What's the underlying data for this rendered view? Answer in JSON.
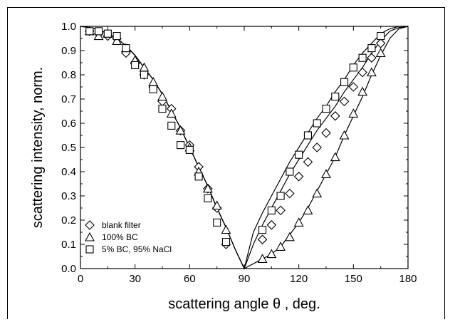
{
  "chart_data": {
    "type": "scatter",
    "xlabel": "scattering angle θ , deg.",
    "ylabel": "scattering intensity, norm.",
    "xlim": [
      0,
      180
    ],
    "ylim": [
      0,
      1.0
    ],
    "xticks": [
      "0",
      "30",
      "60",
      "90",
      "120",
      "150",
      "180"
    ],
    "yticks": [
      "0.0",
      "0.1",
      "0.2",
      "0.3",
      "0.4",
      "0.5",
      "0.6",
      "0.7",
      "0.8",
      "0.9",
      "1.0"
    ],
    "legend_position": "bottom-left",
    "series": [
      {
        "name": "blank filter",
        "marker": "diamond",
        "x": [
          5,
          10,
          15,
          20,
          25,
          30,
          35,
          40,
          45,
          50,
          55,
          60,
          65,
          70,
          75,
          80,
          100,
          105,
          110,
          115,
          120,
          125,
          130,
          135,
          140,
          145,
          150,
          155,
          160,
          165
        ],
        "y": [
          0.98,
          0.97,
          0.96,
          0.95,
          0.89,
          0.85,
          0.8,
          0.75,
          0.69,
          0.66,
          0.57,
          0.51,
          0.42,
          0.33,
          0.25,
          0.1,
          0.12,
          0.18,
          0.24,
          0.31,
          0.38,
          0.44,
          0.5,
          0.56,
          0.63,
          0.69,
          0.75,
          0.81,
          0.87,
          0.93
        ]
      },
      {
        "name": "100% BC",
        "marker": "triangle",
        "x": [
          5,
          10,
          15,
          20,
          25,
          30,
          35,
          40,
          45,
          50,
          55,
          60,
          65,
          70,
          75,
          80,
          100,
          105,
          110,
          115,
          120,
          125,
          130,
          135,
          140,
          145,
          150,
          155,
          160,
          165
        ],
        "y": [
          0.98,
          0.96,
          0.97,
          0.94,
          0.91,
          0.86,
          0.83,
          0.77,
          0.71,
          0.64,
          0.57,
          0.5,
          0.4,
          0.33,
          0.26,
          0.16,
          0.04,
          0.06,
          0.09,
          0.13,
          0.19,
          0.24,
          0.31,
          0.39,
          0.46,
          0.55,
          0.64,
          0.73,
          0.81,
          0.89
        ]
      },
      {
        "name": "5% BC, 95% NaCl",
        "marker": "square",
        "x": [
          5,
          10,
          15,
          20,
          25,
          30,
          35,
          40,
          45,
          50,
          55,
          60,
          65,
          70,
          75,
          80,
          100,
          105,
          110,
          115,
          120,
          125,
          130,
          135,
          140,
          145,
          150,
          155,
          160,
          165
        ],
        "y": [
          0.98,
          0.98,
          0.97,
          0.96,
          0.91,
          0.84,
          0.8,
          0.74,
          0.66,
          0.59,
          0.51,
          0.49,
          0.38,
          0.29,
          0.19,
          0.11,
          0.16,
          0.24,
          0.3,
          0.4,
          0.47,
          0.55,
          0.6,
          0.66,
          0.71,
          0.77,
          0.83,
          0.87,
          0.91,
          0.96
        ]
      }
    ],
    "fit_curves": [
      {
        "x": [
          0,
          5,
          10,
          15,
          20,
          25,
          30,
          35,
          40,
          45,
          50,
          55,
          60,
          65,
          70,
          75,
          80,
          85,
          90,
          95,
          100,
          105,
          110,
          115,
          120,
          125,
          130,
          135,
          140,
          145,
          150,
          155,
          160,
          165,
          170,
          175,
          180
        ],
        "y": [
          1.0,
          0.995,
          0.985,
          0.97,
          0.95,
          0.92,
          0.88,
          0.83,
          0.78,
          0.72,
          0.65,
          0.58,
          0.5,
          0.42,
          0.34,
          0.25,
          0.17,
          0.08,
          0.0,
          0.1,
          0.18,
          0.25,
          0.32,
          0.39,
          0.45,
          0.51,
          0.57,
          0.62,
          0.67,
          0.73,
          0.78,
          0.83,
          0.89,
          0.94,
          0.98,
          0.995,
          1.0
        ]
      },
      {
        "x": [
          0,
          5,
          10,
          15,
          20,
          25,
          30,
          35,
          40,
          45,
          50,
          55,
          60,
          65,
          70,
          75,
          80,
          85,
          90,
          95,
          100,
          105,
          110,
          115,
          120,
          125,
          130,
          135,
          140,
          145,
          150,
          155,
          160,
          165,
          170,
          175,
          180
        ],
        "y": [
          1.0,
          0.995,
          0.985,
          0.97,
          0.95,
          0.92,
          0.88,
          0.83,
          0.78,
          0.72,
          0.65,
          0.58,
          0.5,
          0.42,
          0.34,
          0.25,
          0.17,
          0.08,
          0.0,
          0.02,
          0.04,
          0.06,
          0.09,
          0.14,
          0.19,
          0.25,
          0.32,
          0.39,
          0.46,
          0.55,
          0.63,
          0.71,
          0.8,
          0.88,
          0.95,
          0.99,
          1.0
        ]
      },
      {
        "x": [
          0,
          5,
          10,
          15,
          20,
          25,
          30,
          35,
          40,
          45,
          50,
          55,
          60,
          65,
          70,
          75,
          80,
          85,
          90,
          95,
          100,
          105,
          110,
          115,
          120,
          125,
          130,
          135,
          140,
          145,
          150,
          155,
          160,
          165,
          170,
          175,
          180
        ],
        "y": [
          1.0,
          0.995,
          0.985,
          0.97,
          0.95,
          0.92,
          0.88,
          0.83,
          0.78,
          0.72,
          0.65,
          0.58,
          0.5,
          0.42,
          0.34,
          0.25,
          0.17,
          0.08,
          0.0,
          0.15,
          0.23,
          0.3,
          0.37,
          0.44,
          0.5,
          0.56,
          0.62,
          0.67,
          0.73,
          0.78,
          0.84,
          0.89,
          0.93,
          0.97,
          0.99,
          1.0,
          1.0
        ]
      }
    ]
  }
}
